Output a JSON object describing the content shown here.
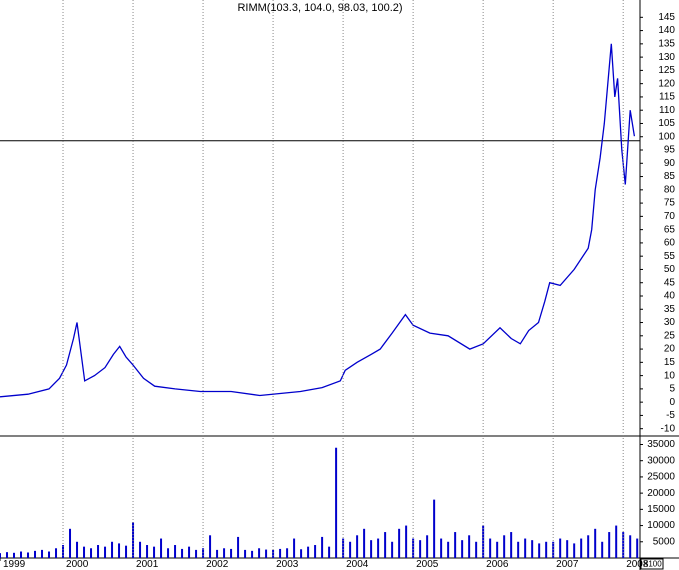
{
  "chart_data": [
    {
      "type": "line",
      "title": "RIMM(103.3, 104.0, 98.03, 100.2)",
      "color": "#0000cc",
      "x": [
        1999.1,
        1999.5,
        1999.8,
        1999.95,
        2000.05,
        2000.15,
        2000.2,
        2000.25,
        2000.31,
        2000.45,
        2000.6,
        2000.72,
        2000.81,
        2000.9,
        2001.0,
        2001.15,
        2001.31,
        2001.6,
        2001.96,
        2002.4,
        2002.81,
        2003.39,
        2003.7,
        2003.96,
        2004.03,
        2004.2,
        2004.4,
        2004.53,
        2004.7,
        2004.89,
        2005.0,
        2005.24,
        2005.5,
        2005.81,
        2006.0,
        2006.24,
        2006.4,
        2006.53,
        2006.65,
        2006.79,
        2006.88,
        2006.95,
        2007.1,
        2007.3,
        2007.5,
        2007.55,
        2007.6,
        2007.67,
        2007.73,
        2007.78,
        2007.83,
        2007.88,
        2007.92,
        2007.98,
        2008.03,
        2008.1,
        2008.16
      ],
      "values": [
        2,
        3,
        5,
        9,
        14,
        24,
        30,
        20,
        8,
        10,
        13,
        18,
        21,
        17,
        14,
        9,
        6,
        5,
        4,
        4,
        2.5,
        4,
        5.5,
        8,
        12,
        15,
        18,
        20,
        26,
        33,
        29,
        26,
        25,
        20,
        22,
        28,
        24,
        22,
        27,
        30,
        38,
        45,
        44,
        50,
        58,
        65,
        80,
        92,
        105,
        120,
        135,
        115,
        122,
        95,
        82,
        110,
        100.2
      ],
      "xlim": [
        1999.1,
        2008.24
      ],
      "xticks": [
        1999,
        2000,
        2001,
        2002,
        2003,
        2004,
        2005,
        2006,
        2007,
        2008
      ],
      "ylim": [
        -12,
        147
      ],
      "yticks": [
        -10,
        -5,
        0,
        5,
        10,
        15,
        20,
        25,
        30,
        35,
        40,
        45,
        50,
        55,
        60,
        65,
        70,
        75,
        80,
        85,
        90,
        95,
        100,
        105,
        110,
        115,
        120,
        125,
        130,
        135,
        140,
        145
      ],
      "hline": 98.5,
      "grid": true
    },
    {
      "type": "bar",
      "color": "#0000cc",
      "unit_label": "X100",
      "x": [
        1999.1,
        1999.2,
        1999.3,
        1999.4,
        1999.5,
        1999.6,
        1999.7,
        1999.8,
        1999.9,
        2000.0,
        2000.1,
        2000.2,
        2000.3,
        2000.4,
        2000.5,
        2000.6,
        2000.7,
        2000.8,
        2000.9,
        2001.0,
        2001.1,
        2001.2,
        2001.3,
        2001.4,
        2001.5,
        2001.6,
        2001.7,
        2001.8,
        2001.9,
        2002.0,
        2002.1,
        2002.2,
        2002.3,
        2002.4,
        2002.5,
        2002.6,
        2002.7,
        2002.8,
        2002.9,
        2003.0,
        2003.1,
        2003.2,
        2003.3,
        2003.4,
        2003.5,
        2003.6,
        2003.7,
        2003.8,
        2003.9,
        2004.0,
        2004.1,
        2004.2,
        2004.3,
        2004.4,
        2004.5,
        2004.6,
        2004.7,
        2004.8,
        2004.9,
        2005.0,
        2005.1,
        2005.2,
        2005.3,
        2005.4,
        2005.5,
        2005.6,
        2005.7,
        2005.8,
        2005.9,
        2006.0,
        2006.1,
        2006.2,
        2006.3,
        2006.4,
        2006.5,
        2006.6,
        2006.7,
        2006.8,
        2006.9,
        2007.0,
        2007.1,
        2007.2,
        2007.3,
        2007.4,
        2007.5,
        2007.6,
        2007.7,
        2007.8,
        2007.9,
        2008.0,
        2008.1,
        2008.2
      ],
      "values": [
        1500,
        1800,
        1600,
        2000,
        1700,
        2200,
        2500,
        2000,
        3000,
        4000,
        9000,
        5000,
        3500,
        3000,
        4000,
        3500,
        5000,
        4500,
        3800,
        11000,
        5000,
        4000,
        3500,
        6000,
        3000,
        4000,
        2800,
        3500,
        2500,
        3000,
        7000,
        2500,
        3000,
        2800,
        6500,
        2500,
        2200,
        3000,
        2600,
        2500,
        2800,
        3000,
        6000,
        2700,
        3500,
        4000,
        6500,
        3500,
        34000,
        6000,
        5000,
        7000,
        9000,
        5500,
        6000,
        8000,
        5000,
        9000,
        10000,
        6000,
        5500,
        7000,
        18000,
        6000,
        5000,
        8000,
        5500,
        7000,
        5000,
        10000,
        6000,
        5000,
        7000,
        8000,
        5000,
        6000,
        5500,
        4500,
        5000,
        5000,
        6000,
        5500,
        4500,
        6000,
        7000,
        9000,
        5000,
        8000,
        10000,
        8000,
        7000,
        6000
      ],
      "ylim": [
        0,
        37000
      ],
      "yticks": [
        5000,
        10000,
        15000,
        20000,
        25000,
        30000,
        35000
      ]
    }
  ]
}
